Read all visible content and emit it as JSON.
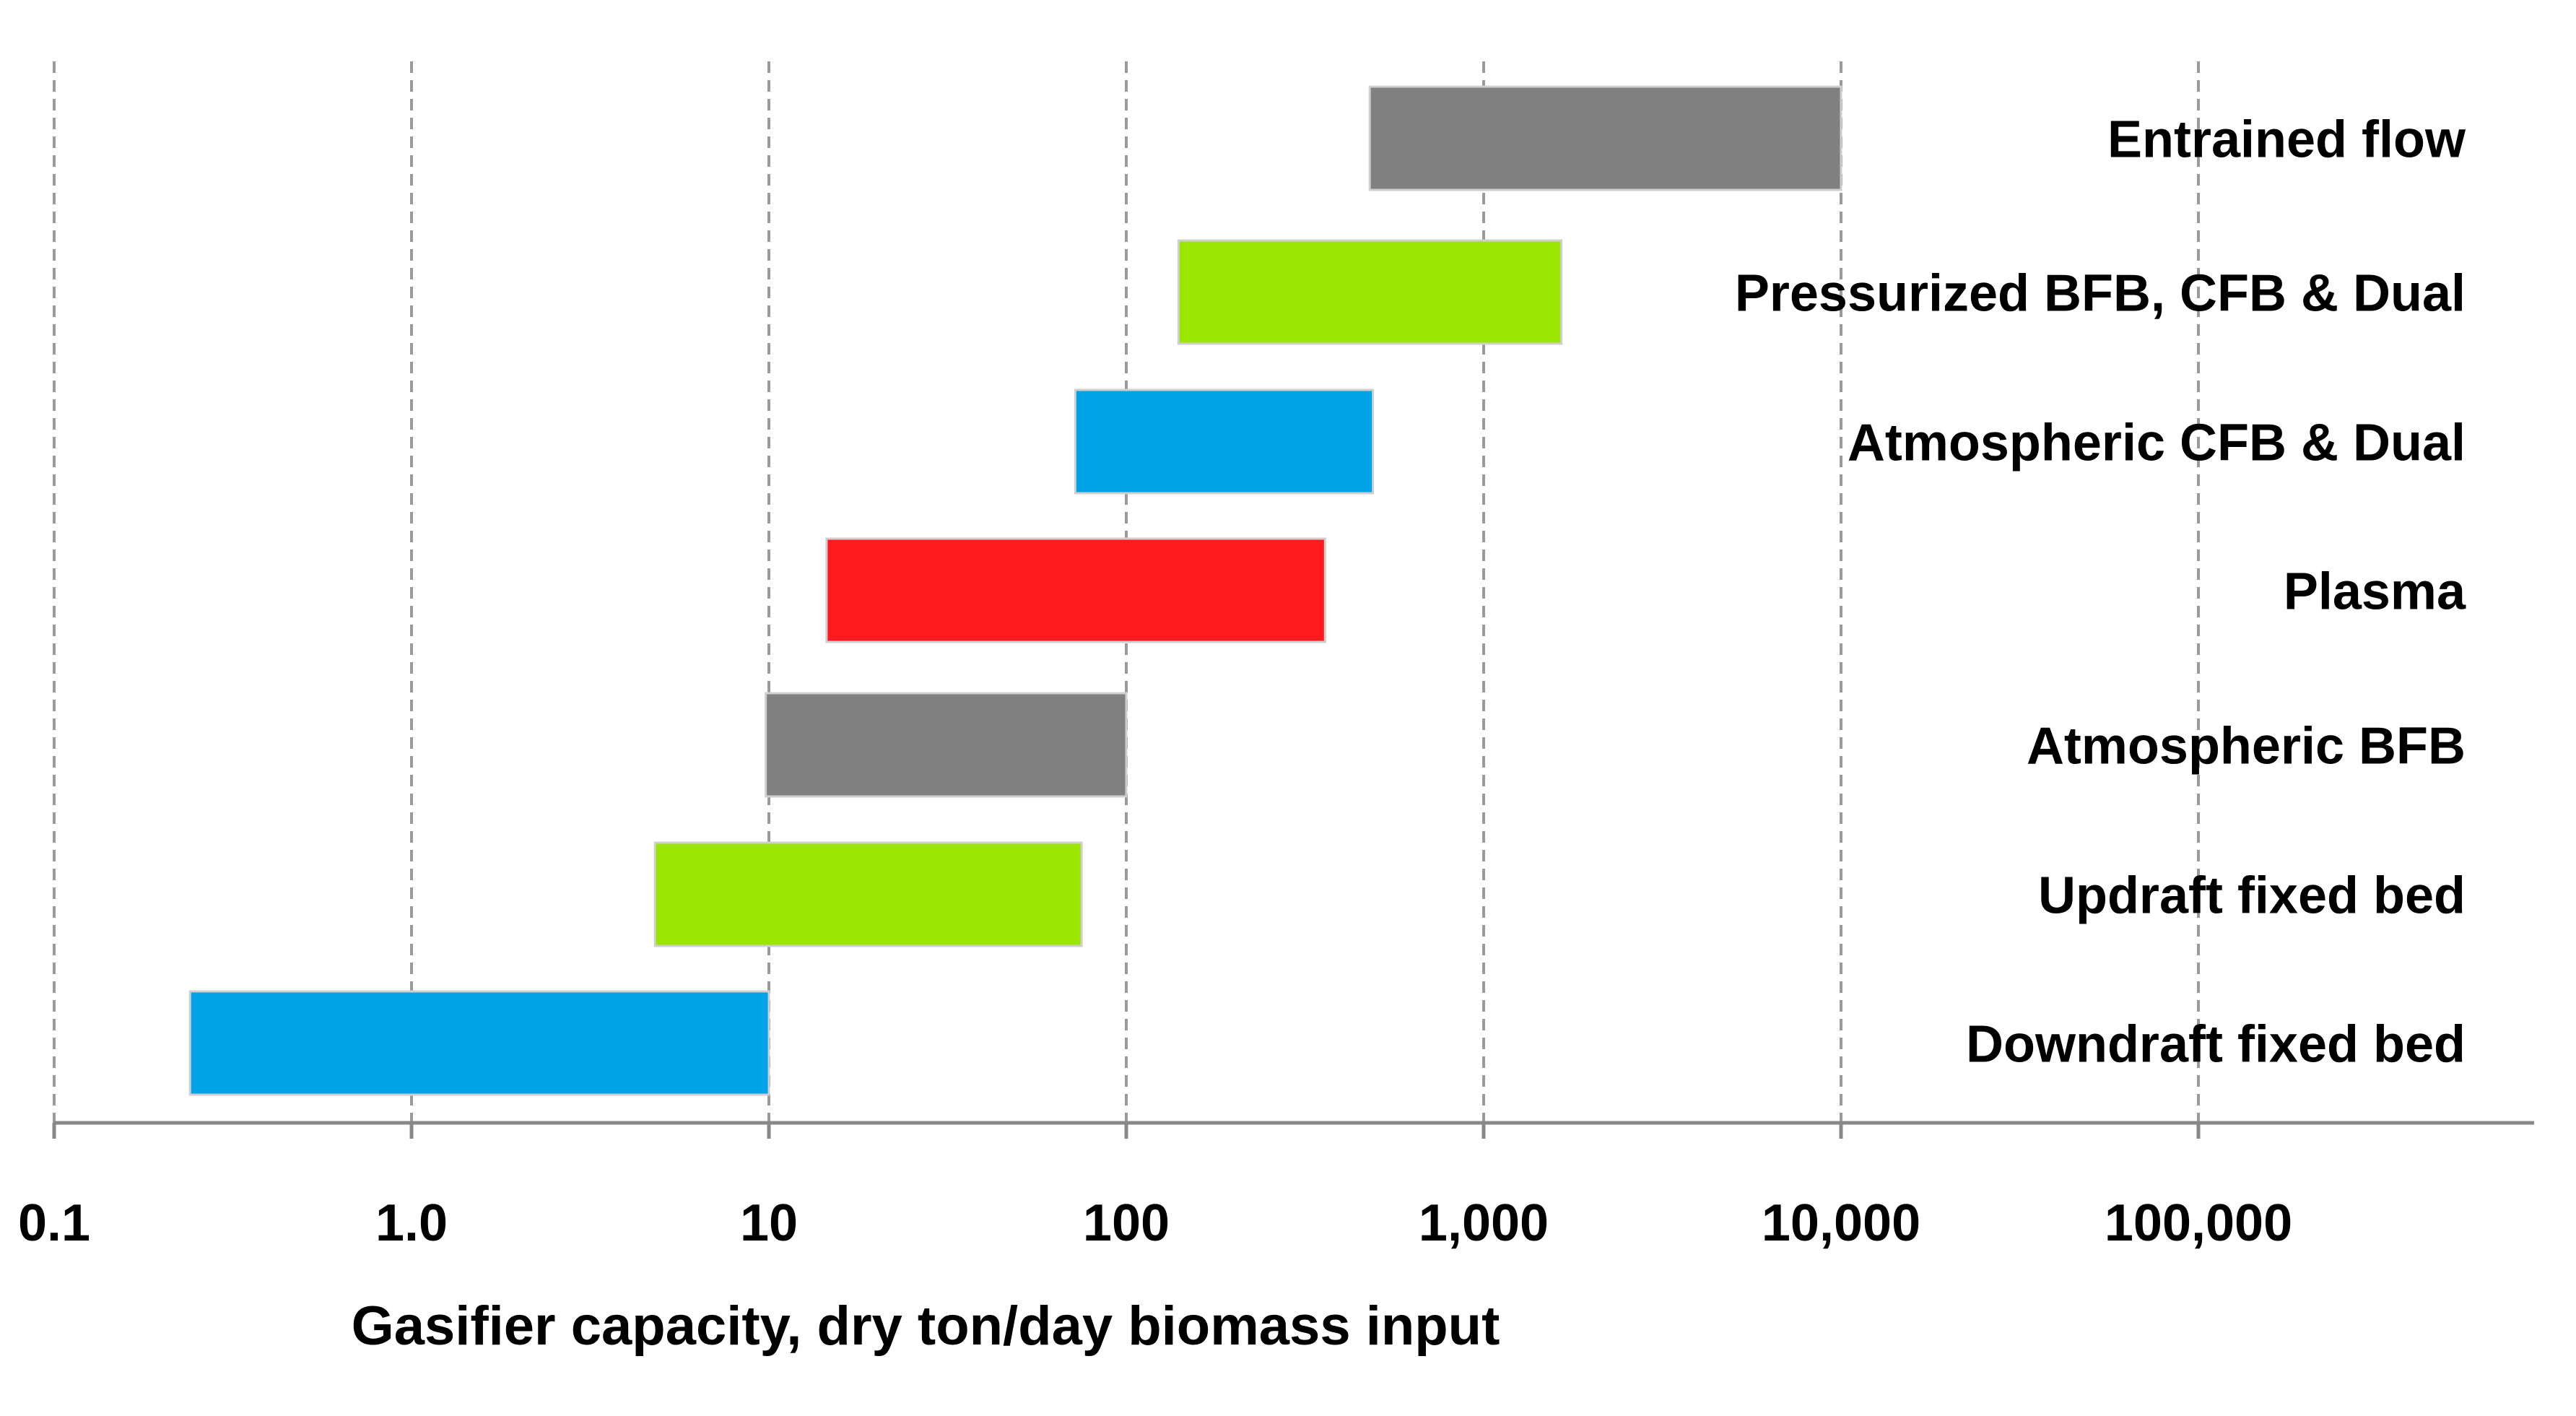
{
  "chart_data": {
    "type": "bar",
    "orientation": "horizontal-range",
    "title": "",
    "xlabel": "Gasifier capacity, dry ton/day biomass input",
    "ylabel": "",
    "x_scale": "log10",
    "xlim": [
      0.1,
      700000
    ],
    "grid": true,
    "x_ticks": [
      {
        "value": 0.1,
        "label": "0.1"
      },
      {
        "value": 1,
        "label": "1.0"
      },
      {
        "value": 10,
        "label": "10"
      },
      {
        "value": 100,
        "label": "100"
      },
      {
        "value": 1000,
        "label": "1,000"
      },
      {
        "value": 10000,
        "label": "10,000"
      },
      {
        "value": 100000,
        "label": "100,000"
      }
    ],
    "series": [
      {
        "name": "Entrained flow",
        "min": 480,
        "max": 10000,
        "color": "#808080"
      },
      {
        "name": "Pressurized BFB, CFB & Dual",
        "min": 140,
        "max": 1650,
        "color": "#9be600"
      },
      {
        "name": "Atmospheric CFB & Dual",
        "min": 72,
        "max": 490,
        "color": "#00a2e8"
      },
      {
        "name": "Plasma",
        "min": 14.5,
        "max": 360,
        "color": "#ff1a1f"
      },
      {
        "name": "Atmospheric BFB",
        "min": 9.8,
        "max": 100,
        "color": "#808080"
      },
      {
        "name": "Updraft fixed bed",
        "min": 4.8,
        "max": 75,
        "color": "#9be600"
      },
      {
        "name": "Downdraft fixed bed",
        "min": 0.24,
        "max": 10,
        "color": "#00a2e8"
      }
    ]
  }
}
